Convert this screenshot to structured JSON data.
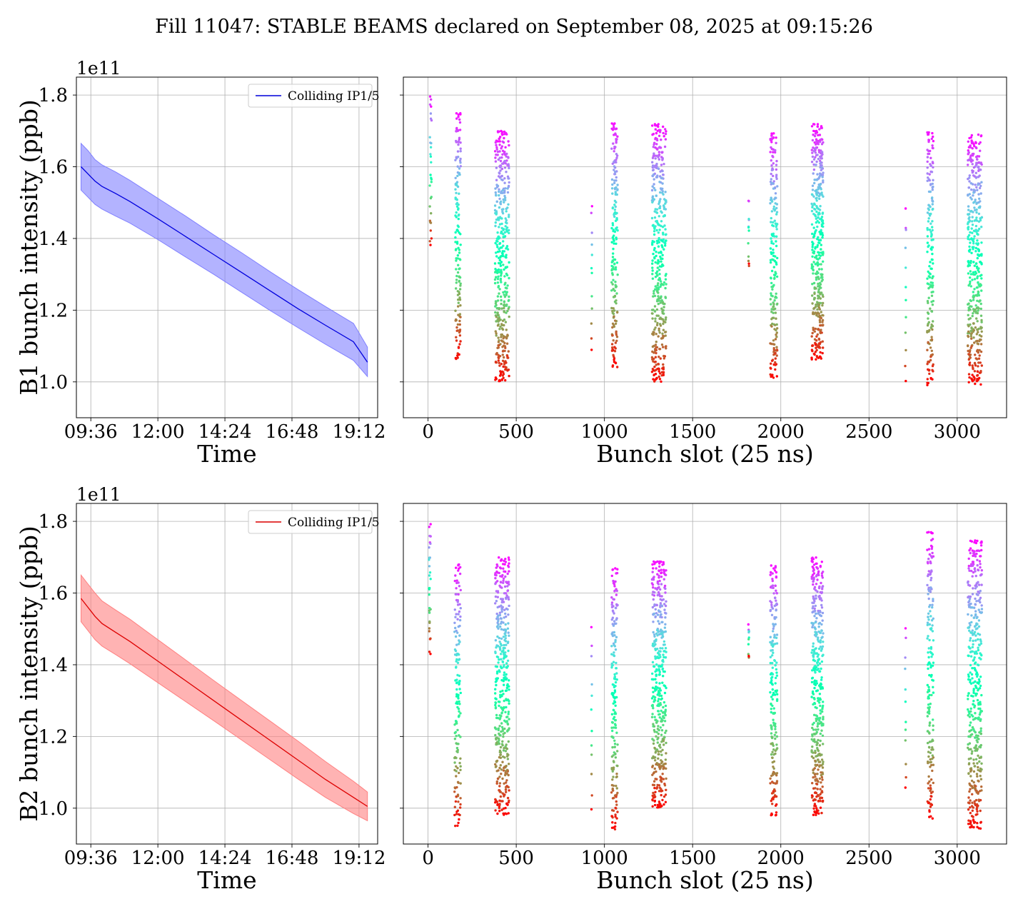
{
  "figure": {
    "title": "Fill 11047: STABLE BEAMS declared on September 08, 2025 at 09:15:26"
  },
  "chart_data": [
    {
      "id": "b1_time",
      "type": "line",
      "title": "",
      "xlabel": "Time",
      "ylabel": "B1 bunch intensity (ppb)",
      "y_offset_label": "1e11",
      "ylim": [
        0.9,
        1.85
      ],
      "y_ticks": [
        "1.0",
        "1.2",
        "1.4",
        "1.6",
        "1.8"
      ],
      "y_tick_values": [
        1.0,
        1.2,
        1.4,
        1.6,
        1.8
      ],
      "x_ticks": [
        "09:36",
        "12:00",
        "14:24",
        "16:48",
        "19:12"
      ],
      "x_tick_values": [
        "09:36",
        "12:00",
        "14:24",
        "16:48",
        "19:12"
      ],
      "xlim": [
        "09:05",
        "19:52"
      ],
      "grid": true,
      "legend": {
        "placement": "top-right",
        "entries": [
          "Colliding IP1/5"
        ]
      },
      "color": "#0000dd",
      "band_color": "#8080ff",
      "series": [
        {
          "name": "Colliding IP1/5",
          "x": [
            "09:15",
            "09:30",
            "09:45",
            "10:00",
            "10:30",
            "11:00",
            "12:00",
            "13:00",
            "14:00",
            "15:00",
            "16:00",
            "17:00",
            "18:00",
            "19:00",
            "19:30"
          ],
          "y": [
            1.6,
            1.58,
            1.56,
            1.545,
            1.525,
            1.503,
            1.455,
            1.405,
            1.355,
            1.305,
            1.255,
            1.205,
            1.158,
            1.112,
            1.055
          ],
          "band_upper": [
            1.665,
            1.645,
            1.62,
            1.605,
            1.585,
            1.562,
            1.512,
            1.462,
            1.41,
            1.36,
            1.308,
            1.258,
            1.21,
            1.163,
            1.097
          ],
          "band_lower": [
            1.535,
            1.515,
            1.495,
            1.482,
            1.462,
            1.443,
            1.397,
            1.348,
            1.3,
            1.25,
            1.2,
            1.152,
            1.105,
            1.06,
            1.015
          ]
        }
      ]
    },
    {
      "id": "b1_slots",
      "type": "scatter",
      "title": "",
      "xlabel": "Bunch slot (25 ns)",
      "ylabel": "",
      "ylim": [
        0.9,
        1.85
      ],
      "xlim": [
        -140,
        3280
      ],
      "x_ticks": [
        "0",
        "500",
        "1000",
        "1500",
        "2000",
        "2500",
        "3000"
      ],
      "x_tick_values": [
        0,
        500,
        1000,
        1500,
        2000,
        2500,
        3000
      ],
      "y_tick_values": [
        1.0,
        1.2,
        1.4,
        1.6,
        1.8
      ],
      "grid": true,
      "colormap": "rainbow (purple = early/high, red = late/low)",
      "groups": [
        {
          "x_start": 10,
          "x_end": 20,
          "n": 30,
          "y_top": 1.8,
          "y_bottom": 1.38
        },
        {
          "x_start": 155,
          "x_end": 185,
          "n": 150,
          "y_top": 1.75,
          "y_bottom": 1.06
        },
        {
          "x_start": 380,
          "x_end": 460,
          "n": 420,
          "y_top": 1.7,
          "y_bottom": 1.0
        },
        {
          "x_start": 925,
          "x_end": 930,
          "n": 12,
          "y_top": 1.51,
          "y_bottom": 1.08
        },
        {
          "x_start": 1040,
          "x_end": 1075,
          "n": 180,
          "y_top": 1.73,
          "y_bottom": 1.04
        },
        {
          "x_start": 1270,
          "x_end": 1350,
          "n": 420,
          "y_top": 1.72,
          "y_bottom": 1.0
        },
        {
          "x_start": 1815,
          "x_end": 1820,
          "n": 12,
          "y_top": 1.51,
          "y_bottom": 1.32
        },
        {
          "x_start": 1940,
          "x_end": 1980,
          "n": 200,
          "y_top": 1.7,
          "y_bottom": 1.01
        },
        {
          "x_start": 2175,
          "x_end": 2240,
          "n": 400,
          "y_top": 1.72,
          "y_bottom": 1.06
        },
        {
          "x_start": 2705,
          "x_end": 2710,
          "n": 12,
          "y_top": 1.5,
          "y_bottom": 1.0
        },
        {
          "x_start": 2830,
          "x_end": 2865,
          "n": 180,
          "y_top": 1.7,
          "y_bottom": 0.99
        },
        {
          "x_start": 3060,
          "x_end": 3140,
          "n": 420,
          "y_top": 1.69,
          "y_bottom": 0.99
        }
      ]
    },
    {
      "id": "b2_time",
      "type": "line",
      "title": "",
      "xlabel": "Time",
      "ylabel": "B2 bunch intensity (ppb)",
      "y_offset_label": "1e11",
      "ylim": [
        0.9,
        1.85
      ],
      "y_ticks": [
        "1.0",
        "1.2",
        "1.4",
        "1.6",
        "1.8"
      ],
      "y_tick_values": [
        1.0,
        1.2,
        1.4,
        1.6,
        1.8
      ],
      "x_ticks": [
        "09:36",
        "12:00",
        "14:24",
        "16:48",
        "19:12"
      ],
      "x_tick_values": [
        "09:36",
        "12:00",
        "14:24",
        "16:48",
        "19:12"
      ],
      "xlim": [
        "09:05",
        "19:52"
      ],
      "grid": true,
      "legend": {
        "placement": "top-right",
        "entries": [
          "Colliding IP1/5"
        ]
      },
      "color": "#dd0000",
      "band_color": "#ff8080",
      "series": [
        {
          "name": "Colliding IP1/5",
          "x": [
            "09:15",
            "09:30",
            "09:45",
            "10:00",
            "10:30",
            "11:00",
            "12:00",
            "13:00",
            "14:00",
            "15:00",
            "16:00",
            "17:00",
            "18:00",
            "19:00",
            "19:30"
          ],
          "y": [
            1.585,
            1.56,
            1.535,
            1.515,
            1.49,
            1.465,
            1.41,
            1.355,
            1.3,
            1.245,
            1.19,
            1.135,
            1.08,
            1.03,
            1.005
          ],
          "band_upper": [
            1.65,
            1.625,
            1.6,
            1.578,
            1.552,
            1.527,
            1.47,
            1.413,
            1.356,
            1.3,
            1.244,
            1.188,
            1.13,
            1.075,
            1.045
          ],
          "band_lower": [
            1.52,
            1.495,
            1.47,
            1.452,
            1.428,
            1.403,
            1.35,
            1.297,
            1.244,
            1.19,
            1.136,
            1.082,
            1.03,
            0.985,
            0.965
          ]
        }
      ]
    },
    {
      "id": "b2_slots",
      "type": "scatter",
      "title": "",
      "xlabel": "Bunch slot (25 ns)",
      "ylabel": "",
      "ylim": [
        0.9,
        1.85
      ],
      "xlim": [
        -140,
        3280
      ],
      "x_ticks": [
        "0",
        "500",
        "1000",
        "1500",
        "2000",
        "2500",
        "3000"
      ],
      "x_tick_values": [
        0,
        500,
        1000,
        1500,
        2000,
        2500,
        3000
      ],
      "y_tick_values": [
        1.0,
        1.2,
        1.4,
        1.6,
        1.8
      ],
      "grid": true,
      "colormap": "rainbow (purple = early/high, red = late/low)",
      "groups": [
        {
          "x_start": 5,
          "x_end": 15,
          "n": 30,
          "y_top": 1.8,
          "y_bottom": 1.43
        },
        {
          "x_start": 150,
          "x_end": 185,
          "n": 150,
          "y_top": 1.68,
          "y_bottom": 0.95
        },
        {
          "x_start": 380,
          "x_end": 460,
          "n": 420,
          "y_top": 1.7,
          "y_bottom": 0.98
        },
        {
          "x_start": 925,
          "x_end": 930,
          "n": 12,
          "y_top": 1.51,
          "y_bottom": 0.99
        },
        {
          "x_start": 1040,
          "x_end": 1075,
          "n": 180,
          "y_top": 1.67,
          "y_bottom": 0.94
        },
        {
          "x_start": 1270,
          "x_end": 1350,
          "n": 420,
          "y_top": 1.69,
          "y_bottom": 1.0
        },
        {
          "x_start": 1815,
          "x_end": 1820,
          "n": 12,
          "y_top": 1.52,
          "y_bottom": 1.42
        },
        {
          "x_start": 1940,
          "x_end": 1980,
          "n": 200,
          "y_top": 1.68,
          "y_bottom": 0.98
        },
        {
          "x_start": 2175,
          "x_end": 2240,
          "n": 400,
          "y_top": 1.7,
          "y_bottom": 0.98
        },
        {
          "x_start": 2705,
          "x_end": 2710,
          "n": 12,
          "y_top": 1.51,
          "y_bottom": 1.05
        },
        {
          "x_start": 2830,
          "x_end": 2865,
          "n": 180,
          "y_top": 1.77,
          "y_bottom": 0.97
        },
        {
          "x_start": 3060,
          "x_end": 3140,
          "n": 420,
          "y_top": 1.75,
          "y_bottom": 0.94
        }
      ]
    }
  ]
}
